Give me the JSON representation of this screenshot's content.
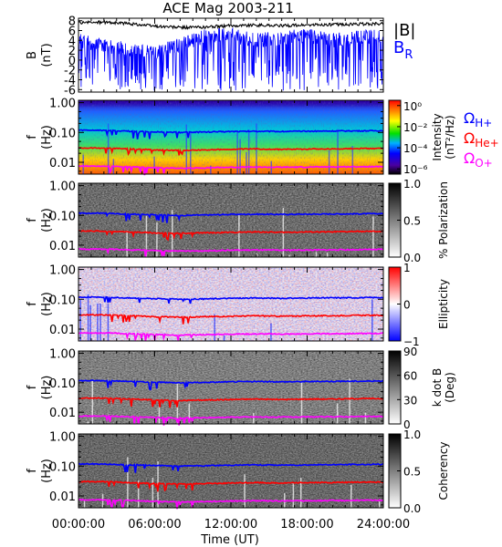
{
  "title": "ACE Mag 2003-211",
  "xlabel": "Time (UT)",
  "x_ticks": [
    "00:00:00",
    "06:00:00",
    "12:00:00",
    "18:00:00",
    "24:00:00"
  ],
  "colors": {
    "H_plus": "#0000ff",
    "He_plus": "#ff0000",
    "O_plus": "#ff00ff",
    "B_total": "#000000",
    "B_R": "#0000ff"
  },
  "chart_data": [
    {
      "type": "line",
      "panel": "magnetic-field",
      "ylabel_1": "B",
      "ylabel_2": "(nT)",
      "y_ticks": [
        "8",
        "6",
        "4",
        "2",
        "0",
        "-2",
        "-4",
        "-6"
      ],
      "ylim": [
        -6.5,
        8.5
      ],
      "xlim_hours": [
        0,
        24
      ],
      "legend": [
        "|B|",
        "B_R"
      ],
      "legend_placement": "right",
      "series": [
        {
          "name": "|B|",
          "x_hours": [
            0,
            2,
            4,
            6,
            8,
            10,
            12,
            14,
            16,
            18,
            20,
            22,
            24
          ],
          "values": [
            7.6,
            7.7,
            7.4,
            6.9,
            6.6,
            6.7,
            7.0,
            7.1,
            7.0,
            7.1,
            7.2,
            7.3,
            7.4
          ]
        },
        {
          "name": "B_R",
          "x_hours": [
            0,
            2,
            4,
            6,
            8,
            10,
            12,
            14,
            16,
            18,
            20,
            22,
            24
          ],
          "values": [
            4.0,
            3.0,
            2.0,
            1.5,
            3.0,
            5.0,
            5.0,
            4.0,
            4.5,
            5.0,
            4.0,
            4.5,
            5.0
          ],
          "min_excursion": -6.2
        }
      ]
    },
    {
      "type": "heatmap",
      "panel": "intensity",
      "ylabel_1": "f",
      "ylabel_2": "(Hz)",
      "y_ticks": [
        "1.00",
        "0.10",
        "0.01"
      ],
      "ylim_hz": [
        0.004,
        1.2
      ],
      "colorbar_label": "Intensity",
      "colorbar_unit": "(nT²/Hz)",
      "colorbar_ticks": [
        "10⁰",
        "10⁻²",
        "10⁻⁴",
        "10⁻⁶"
      ],
      "colorbar_range_log10": [
        -6.5,
        0.5
      ],
      "legend": [
        "Ω_H+",
        "Ω_He+",
        "Ω_O+"
      ],
      "gyrofrequency_lines": "H+, He+, O+"
    },
    {
      "type": "heatmap",
      "panel": "polarization",
      "ylabel_1": "f",
      "ylabel_2": "(Hz)",
      "y_ticks": [
        "1.00",
        "0.10",
        "0.01"
      ],
      "colorbar_label": "% Polarization",
      "colorbar_ticks": [
        "1.0",
        "0.5",
        "0.0"
      ],
      "colorbar_range": [
        0,
        1
      ]
    },
    {
      "type": "heatmap",
      "panel": "ellipticity",
      "ylabel_1": "f",
      "ylabel_2": "(Hz)",
      "y_ticks": [
        "1.00",
        "0.10",
        "0.01"
      ],
      "colorbar_label": "Ellipticity",
      "colorbar_ticks": [
        "1",
        "0",
        "−1"
      ],
      "colorbar_range": [
        -1,
        1
      ]
    },
    {
      "type": "heatmap",
      "panel": "k-dot-b",
      "ylabel_1": "f",
      "ylabel_2": "(Hz)",
      "y_ticks": [
        "1.00",
        "0.10",
        "0.01"
      ],
      "colorbar_label": "k dot B",
      "colorbar_unit": "(Deg)",
      "colorbar_ticks": [
        "90",
        "60",
        "30",
        "0"
      ],
      "colorbar_range": [
        0,
        90
      ]
    },
    {
      "type": "heatmap",
      "panel": "coherency",
      "ylabel_1": "f",
      "ylabel_2": "(Hz)",
      "y_ticks": [
        "1.00",
        "0.10",
        "0.01"
      ],
      "colorbar_label": "Coherency",
      "colorbar_ticks": [
        "1.0",
        "0.5",
        "0.0"
      ],
      "colorbar_range": [
        0,
        1
      ]
    }
  ],
  "gyrofrequency_hz": {
    "x_hours": [
      0,
      2,
      4,
      6,
      8,
      10,
      12,
      14,
      16,
      18,
      20,
      22,
      24
    ],
    "H_plus": [
      0.118,
      0.118,
      0.11,
      0.105,
      0.1,
      0.103,
      0.108,
      0.11,
      0.108,
      0.11,
      0.112,
      0.113,
      0.115
    ],
    "He_plus": [
      0.03,
      0.03,
      0.028,
      0.026,
      0.025,
      0.026,
      0.027,
      0.028,
      0.027,
      0.028,
      0.028,
      0.029,
      0.029
    ],
    "O_plus": [
      0.0074,
      0.0074,
      0.007,
      0.0066,
      0.0063,
      0.0065,
      0.0068,
      0.0069,
      0.0068,
      0.0069,
      0.007,
      0.0071,
      0.0072
    ]
  },
  "legend_top": {
    "B_total_label": "|B|",
    "B_R_main": "B",
    "B_R_sub": "R"
  },
  "legend_ions": {
    "h_main": "Ω",
    "h_sub": "H+",
    "he_main": "Ω",
    "he_sub": "He+",
    "o_main": "Ω",
    "o_sub": "O+"
  }
}
